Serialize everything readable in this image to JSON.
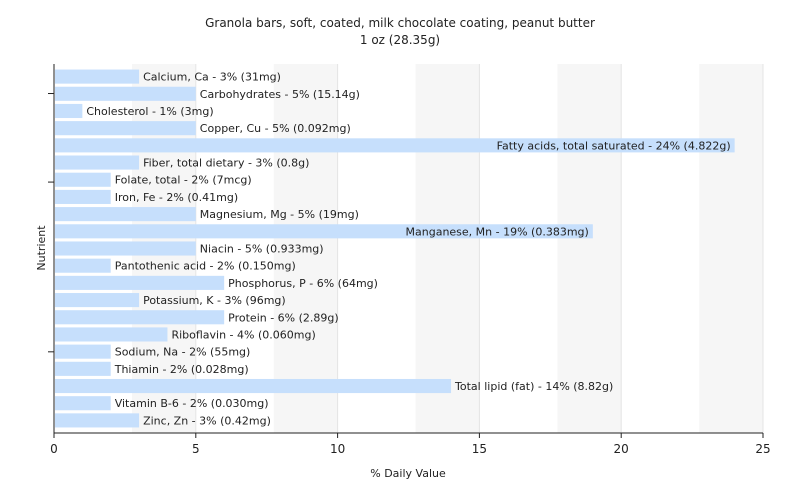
{
  "chart_data": {
    "type": "bar",
    "orientation": "horizontal",
    "title": "Granola bars, soft, coated, milk chocolate coating, peanut butter",
    "subtitle": "1 oz (28.35g)",
    "xlabel": "% Daily Value",
    "ylabel": "Nutrient",
    "xlim": [
      0,
      25
    ],
    "xticks": [
      0,
      5,
      10,
      15,
      20,
      25
    ],
    "grid": true,
    "bar_color": "#c6dffc",
    "categories": [
      "Calcium, Ca",
      "Carbohydrates",
      "Cholesterol",
      "Copper, Cu",
      "Fatty acids, total saturated",
      "Fiber, total dietary",
      "Folate, total",
      "Iron, Fe",
      "Magnesium, Mg",
      "Manganese, Mn",
      "Niacin",
      "Pantothenic acid",
      "Phosphorus, P",
      "Potassium, K",
      "Protein",
      "Riboflavin",
      "Sodium, Na",
      "Thiamin",
      "Total lipid (fat)",
      "Vitamin B-6",
      "Zinc, Zn"
    ],
    "values": [
      3,
      5,
      1,
      5,
      24,
      3,
      2,
      2,
      5,
      19,
      5,
      2,
      6,
      3,
      6,
      4,
      2,
      2,
      14,
      2,
      3
    ],
    "labels": [
      "Calcium, Ca - 3% (31mg)",
      "Carbohydrates - 5% (15.14g)",
      "Cholesterol - 1% (3mg)",
      "Copper, Cu - 5% (0.092mg)",
      "Fatty acids, total saturated - 24% (4.822g)",
      "Fiber, total dietary - 3% (0.8g)",
      "Folate, total - 2% (7mcg)",
      "Iron, Fe - 2% (0.41mg)",
      "Magnesium, Mg - 5% (19mg)",
      "Manganese, Mn - 19% (0.383mg)",
      "Niacin - 5% (0.933mg)",
      "Pantothenic acid - 2% (0.150mg)",
      "Phosphorus, P - 6% (64mg)",
      "Potassium, K - 3% (96mg)",
      "Protein - 6% (2.89g)",
      "Riboflavin - 4% (0.060mg)",
      "Sodium, Na - 2% (55mg)",
      "Thiamin - 2% (0.028mg)",
      "Total lipid (fat) - 14% (8.82g)",
      "Vitamin B-6 - 2% (0.030mg)",
      "Zinc, Zn - 3% (0.42mg)"
    ]
  }
}
